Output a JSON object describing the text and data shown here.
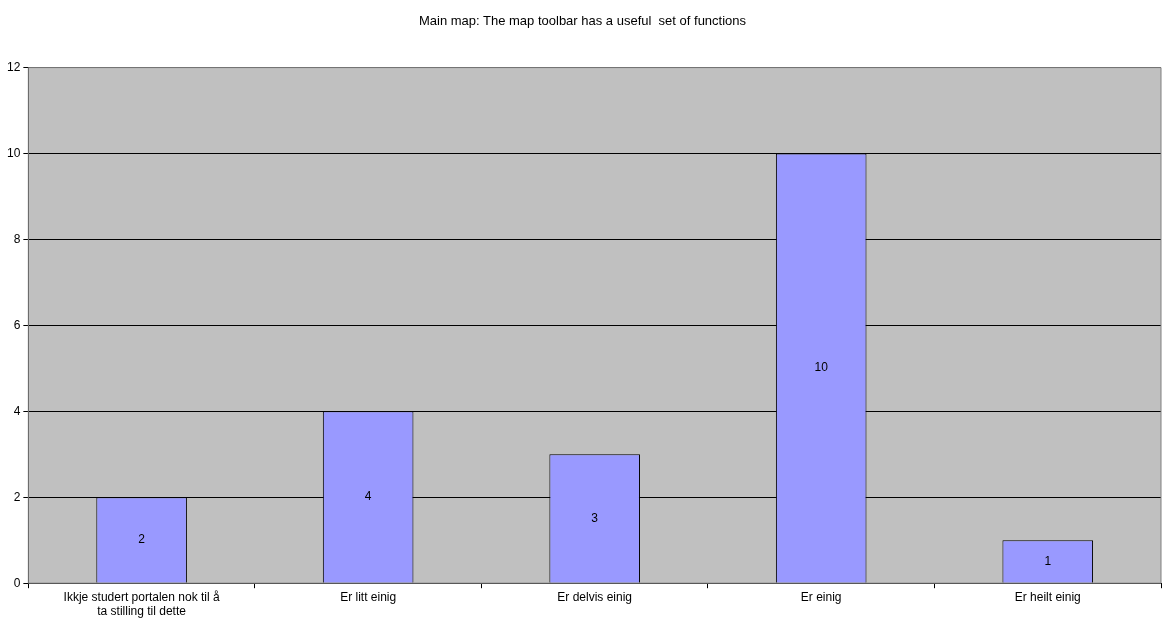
{
  "chart_data": {
    "type": "bar",
    "title": "Main map: The map toolbar has a useful  set of functions",
    "categories": [
      "Ikkje studert portalen nok til å ta stilling til dette",
      "Er litt einig",
      "Er delvis einig",
      "Er einig",
      "Er heilt einig"
    ],
    "values": [
      2,
      4,
      3,
      10,
      1
    ],
    "color": "#9999ff",
    "ylim": [
      0,
      12
    ],
    "yticks": [
      0,
      2,
      4,
      6,
      8,
      10,
      12
    ],
    "grid": "y",
    "data_labels": true
  }
}
